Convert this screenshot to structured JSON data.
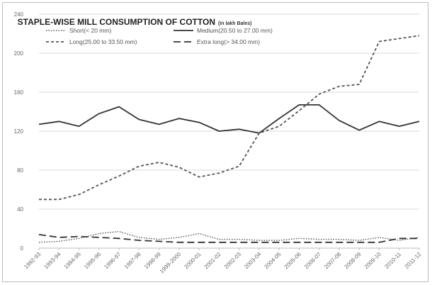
{
  "chart_data": {
    "type": "line",
    "title": "STAPLE-WISE MILL CONSUMPTION OF COTTON",
    "title_unit": "(in lakh Bales)",
    "xlabel": "",
    "ylabel": "",
    "ylim": [
      0,
      240
    ],
    "yticks": [
      0,
      40,
      80,
      120,
      160,
      200,
      240
    ],
    "ytick_labels": [
      "0",
      "40",
      "80",
      "120",
      "160",
      "200",
      "240"
    ],
    "grid": true,
    "legend_position": "top-left",
    "categories": [
      "1992-93",
      "1993-94",
      "1994-95",
      "1995-96",
      "1996-97",
      "1997-98",
      "1998-99",
      "1999-2000",
      "2000-01",
      "2001-02",
      "2002-03",
      "2003-04",
      "2004-05",
      "2005-06",
      "2006-07",
      "2007-08",
      "2008-09",
      "2009-10",
      "2010-11",
      "2011-12"
    ],
    "category_labels": [
      "1992-93",
      "1993-94",
      "1994-95",
      "1995-96",
      "1996-97",
      "1997-98",
      "1998-99",
      "1999-2000",
      "2000-01",
      "2001-02",
      "2002-03",
      "2003-04",
      "2004-05",
      "2005-06",
      "2006-07",
      "2007-08",
      "2008-09",
      "2009-10",
      "2010-11",
      "2011-12"
    ],
    "series": [
      {
        "name": "Short(< 20 mm)",
        "style": "dotted",
        "color": "#555555",
        "values": [
          6,
          7,
          10,
          15,
          17,
          11,
          9,
          11,
          15,
          9,
          9,
          8,
          8,
          10,
          9,
          9,
          8,
          11,
          8,
          11
        ]
      },
      {
        "name": "Medium(20.50 to 27.00 mm)",
        "style": "solid",
        "color": "#333333",
        "values": [
          127,
          130,
          125,
          138,
          145,
          132,
          127,
          133,
          129,
          120,
          122,
          118,
          133,
          147,
          147,
          131,
          121,
          130,
          125,
          130
        ]
      },
      {
        "name": "Long(25.00 to 33.50 mm)",
        "style": "dashed",
        "color": "#555555",
        "values": [
          50,
          50,
          55,
          65,
          74,
          84,
          88,
          83,
          73,
          77,
          84,
          118,
          125,
          141,
          158,
          166,
          168,
          212,
          215,
          218
        ]
      },
      {
        "name": "Extra long(> 34.00 mm)",
        "style": "long-dashed",
        "color": "#333333",
        "values": [
          14,
          11,
          12,
          11,
          10,
          8,
          7,
          6,
          6,
          6,
          6,
          6,
          6,
          6,
          6,
          6,
          6,
          6,
          10,
          10
        ]
      }
    ]
  }
}
